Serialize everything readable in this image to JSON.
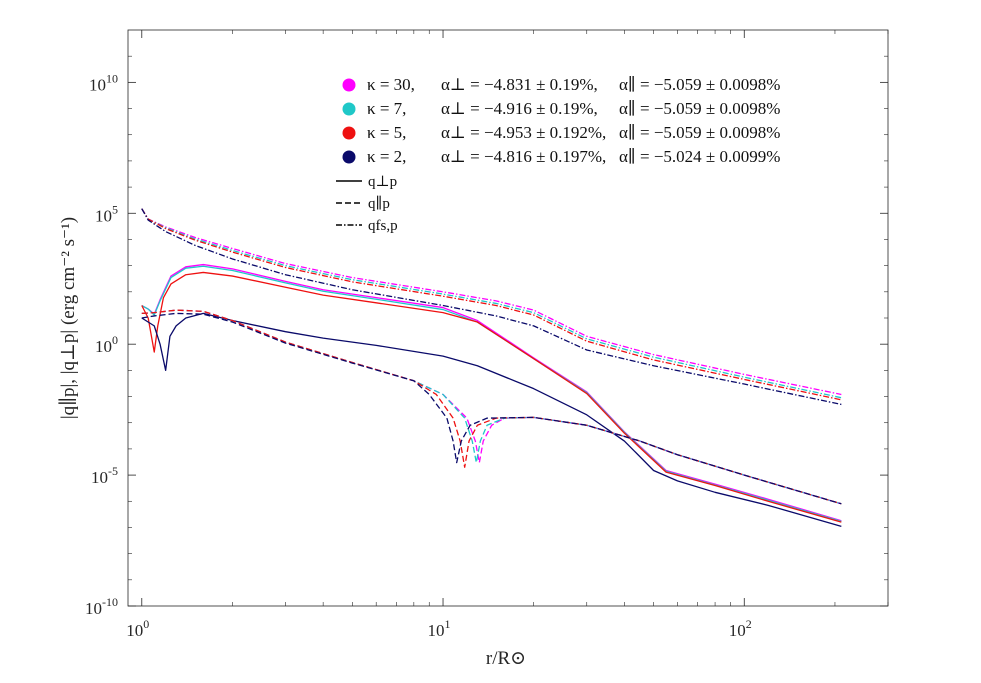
{
  "chart_data": {
    "type": "line",
    "title": "",
    "xlabel": "r/R⊙",
    "ylabel": "|q∥p|, |q⊥p|  (erg  cm⁻²  s⁻¹)",
    "xscale": "log",
    "yscale": "log",
    "xlim": [
      0.9,
      300
    ],
    "ylim": [
      1e-10,
      1000000000000.0
    ],
    "x_ticks": [
      {
        "value": 1,
        "base": "10",
        "exp": "0"
      },
      {
        "value": 10,
        "base": "10",
        "exp": "1"
      },
      {
        "value": 100,
        "base": "10",
        "exp": "2"
      }
    ],
    "y_ticks": [
      {
        "value": 1e-10,
        "base": "10",
        "exp": "-10"
      },
      {
        "value": 1e-05,
        "base": "10",
        "exp": "-5"
      },
      {
        "value": 1,
        "base": "10",
        "exp": "0"
      },
      {
        "value": 100000.0,
        "base": "10",
        "exp": "5"
      },
      {
        "value": 10000000000.0,
        "base": "10",
        "exp": "10"
      }
    ],
    "legend_position": "top-right",
    "legend": [
      {
        "kappa": "κ = 30,",
        "alpha_perp": "α⊥ = −4.831 ± 0.19%,",
        "alpha_par": "α∥ = −5.059 ± 0.0098%",
        "color": "#ff00ff"
      },
      {
        "kappa": "κ = 7,",
        "alpha_perp": "α⊥ = −4.916 ± 0.19%,",
        "alpha_par": "α∥ = −5.059 ± 0.0098%",
        "color": "#1fc8c8"
      },
      {
        "kappa": "κ = 5,",
        "alpha_perp": "α⊥ = −4.953 ± 0.192%,",
        "alpha_par": "α∥ = −5.059 ± 0.0098%",
        "color": "#ee1111"
      },
      {
        "kappa": "κ = 2,",
        "alpha_perp": "α⊥ = −4.816 ± 0.197%,",
        "alpha_par": "α∥ = −5.024 ± 0.0099%",
        "color": "#0a0a6a"
      }
    ],
    "line_styles": [
      {
        "label": "q⊥p",
        "style": "solid"
      },
      {
        "label": "q∥p",
        "style": "dashed"
      },
      {
        "label": "qfs,p",
        "style": "dashdot"
      }
    ],
    "series": [
      {
        "name": "κ=30 q⊥p",
        "color": "#ff00ff",
        "style": "solid",
        "x": [
          1.0,
          1.05,
          1.1,
          1.15,
          1.25,
          1.4,
          1.6,
          2.0,
          3.0,
          4.0,
          6.0,
          10.0,
          13.0,
          20.0,
          30.0,
          40.0,
          55.0,
          80.0,
          120.0,
          210.0
        ],
        "y": [
          30,
          22,
          14,
          50,
          400,
          900,
          1100,
          750,
          250,
          120,
          60,
          25,
          8,
          0.3,
          0.015,
          0.00045,
          1.5e-05,
          4.5e-06,
          1.2e-06,
          1.8e-07
        ]
      },
      {
        "name": "κ=7 q⊥p",
        "color": "#1fc8c8",
        "style": "solid",
        "x": [
          1.0,
          1.05,
          1.1,
          1.15,
          1.25,
          1.4,
          1.6,
          2.0,
          3.0,
          4.0,
          6.0,
          10.0,
          13.0,
          20.0,
          30.0,
          40.0,
          55.0,
          80.0,
          120.0,
          210.0
        ],
        "y": [
          30,
          22,
          13,
          45,
          350,
          800,
          950,
          650,
          220,
          105,
          52,
          21,
          7,
          0.28,
          0.014,
          0.00043,
          1.4e-05,
          4.2e-06,
          1.1e-06,
          1.7e-07
        ]
      },
      {
        "name": "κ=5 q⊥p",
        "color": "#ee1111",
        "style": "solid",
        "x": [
          1.0,
          1.05,
          1.1,
          1.13,
          1.18,
          1.25,
          1.4,
          1.6,
          2.0,
          3.0,
          4.0,
          6.0,
          10.0,
          13.0,
          20.0,
          30.0,
          40.0,
          55.0,
          80.0,
          120.0,
          210.0
        ],
        "y": [
          30,
          10,
          0.5,
          5,
          60,
          200,
          450,
          550,
          400,
          150,
          75,
          38,
          16,
          7,
          0.28,
          0.013,
          0.0004,
          1.3e-05,
          4e-06,
          1e-06,
          1.6e-07
        ]
      },
      {
        "name": "κ=2 q⊥p",
        "color": "#0a0a6a",
        "style": "solid",
        "x": [
          1.0,
          1.1,
          1.15,
          1.2,
          1.24,
          1.3,
          1.4,
          1.6,
          2.0,
          3.0,
          4.0,
          6.0,
          10.0,
          13.0,
          20.0,
          30.0,
          40.0,
          50.0,
          60.0,
          80.0,
          120.0,
          210.0
        ],
        "y": [
          10,
          5,
          1,
          0.1,
          2,
          5,
          10,
          15,
          8,
          3,
          1.7,
          0.9,
          0.35,
          0.15,
          0.02,
          0.002,
          0.0002,
          1.5e-05,
          6e-06,
          2.2e-06,
          7e-07,
          1.1e-07
        ]
      },
      {
        "name": "κ=30 q∥p",
        "color": "#ff00ff",
        "style": "dashed",
        "x": [
          1.0,
          1.1,
          1.3,
          1.6,
          2.0,
          3.0,
          5.0,
          8.0,
          10.0,
          12.0,
          12.8,
          13.2,
          13.6,
          14.5,
          16.0,
          20.0,
          30.0,
          45.0,
          60.0,
          100.0,
          210.0
        ],
        "y": [
          15,
          16,
          20,
          18,
          8,
          1.2,
          0.2,
          0.04,
          0.012,
          0.0015,
          0.0002,
          3e-05,
          0.0002,
          0.0008,
          0.0015,
          0.0016,
          0.0008,
          0.0002,
          6e-05,
          1e-05,
          8e-07
        ]
      },
      {
        "name": "κ=7 q∥p",
        "color": "#1fc8c8",
        "style": "dashed",
        "x": [
          1.0,
          1.1,
          1.3,
          1.6,
          2.0,
          3.0,
          5.0,
          8.0,
          10.0,
          11.8,
          12.5,
          12.9,
          13.3,
          14.0,
          16.0,
          20.0,
          30.0,
          45.0,
          60.0,
          100.0,
          210.0
        ],
        "y": [
          15,
          16,
          20,
          18,
          8,
          1.2,
          0.2,
          0.04,
          0.012,
          0.0015,
          0.0002,
          3e-05,
          0.0002,
          0.0008,
          0.0015,
          0.0016,
          0.0008,
          0.0002,
          6e-05,
          1e-05,
          8e-07
        ]
      },
      {
        "name": "κ=5 q∥p",
        "color": "#ee1111",
        "style": "dashed",
        "x": [
          1.0,
          1.1,
          1.3,
          1.6,
          2.0,
          3.0,
          5.0,
          8.0,
          9.5,
          10.8,
          11.4,
          11.8,
          12.2,
          13.0,
          15.0,
          20.0,
          30.0,
          45.0,
          60.0,
          100.0,
          210.0
        ],
        "y": [
          15,
          16,
          20,
          18,
          8,
          1.2,
          0.2,
          0.04,
          0.012,
          0.0015,
          0.0002,
          2e-05,
          0.0002,
          0.0008,
          0.0015,
          0.0016,
          0.0008,
          0.0002,
          6e-05,
          1e-05,
          8e-07
        ]
      },
      {
        "name": "κ=2 q∥p",
        "color": "#0a0a6a",
        "style": "dashed",
        "x": [
          1.0,
          1.1,
          1.3,
          1.6,
          2.0,
          3.0,
          5.0,
          8.0,
          9.0,
          10.3,
          10.8,
          11.1,
          11.5,
          12.3,
          14.0,
          20.0,
          30.0,
          45.0,
          60.0,
          100.0,
          210.0
        ],
        "y": [
          10,
          12,
          15,
          14,
          7,
          1.1,
          0.19,
          0.04,
          0.012,
          0.0015,
          0.0002,
          3e-05,
          0.0002,
          0.0008,
          0.0015,
          0.0016,
          0.0008,
          0.0002,
          6e-05,
          1e-05,
          8e-07
        ]
      },
      {
        "name": "κ=30 qfs,p",
        "color": "#ff00ff",
        "style": "dashdot",
        "x": [
          1.0,
          1.05,
          1.2,
          1.5,
          2.0,
          3.0,
          5.0,
          10.0,
          15.0,
          20.0,
          30.0,
          50.0,
          100.0,
          210.0
        ],
        "y": [
          150000,
          60000,
          30000,
          12000,
          4500,
          1200,
          350,
          100,
          45,
          20,
          2,
          0.4,
          0.07,
          0.012
        ]
      },
      {
        "name": "κ=7 qfs,p",
        "color": "#1fc8c8",
        "style": "dashdot",
        "x": [
          1.0,
          1.05,
          1.2,
          1.5,
          2.0,
          3.0,
          5.0,
          10.0,
          15.0,
          20.0,
          30.0,
          50.0,
          100.0,
          210.0
        ],
        "y": [
          150000,
          60000,
          28000,
          10500,
          3800,
          1000,
          290,
          82,
          36,
          16,
          1.6,
          0.32,
          0.055,
          0.009
        ]
      },
      {
        "name": "κ=5 qfs,p",
        "color": "#ee1111",
        "style": "dashdot",
        "x": [
          1.0,
          1.05,
          1.2,
          1.5,
          2.0,
          3.0,
          5.0,
          10.0,
          15.0,
          20.0,
          30.0,
          50.0,
          100.0,
          210.0
        ],
        "y": [
          150000,
          60000,
          26000,
          9500,
          3300,
          850,
          240,
          68,
          30,
          13,
          1.3,
          0.25,
          0.045,
          0.0075
        ]
      },
      {
        "name": "κ=2 qfs,p",
        "color": "#0a0a6a",
        "style": "dashdot",
        "x": [
          1.0,
          1.05,
          1.2,
          1.5,
          2.0,
          3.0,
          5.0,
          10.0,
          15.0,
          20.0,
          30.0,
          50.0,
          100.0,
          210.0
        ],
        "y": [
          150000,
          55000,
          20000,
          6000,
          1800,
          450,
          120,
          30,
          12,
          5,
          0.6,
          0.15,
          0.03,
          0.005
        ]
      }
    ]
  }
}
